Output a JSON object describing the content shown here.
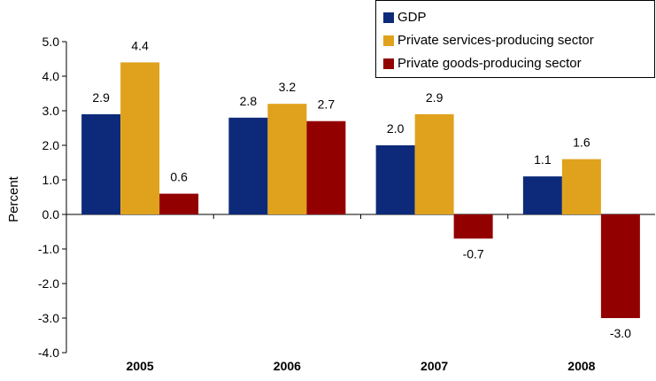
{
  "chart_data": {
    "type": "bar",
    "title": "",
    "xlabel": "",
    "ylabel": "Percent",
    "ylim": [
      -4.0,
      5.0
    ],
    "yticks": [
      "5.0",
      "4.0",
      "3.0",
      "2.0",
      "1.0",
      "0.0",
      "-1.0",
      "-2.0",
      "-3.0",
      "-4.0"
    ],
    "categories": [
      "2005",
      "2006",
      "2007",
      "2008"
    ],
    "legend_position": "top-right",
    "series": [
      {
        "name": "GDP",
        "color": "#0d2a7a",
        "values": [
          2.9,
          2.8,
          2.0,
          1.1
        ],
        "labels": [
          "2.9",
          "2.8",
          "2.0",
          "1.1"
        ]
      },
      {
        "name": "Private services-producing sector",
        "color": "#e0a21c",
        "values": [
          4.4,
          3.2,
          2.9,
          1.6
        ],
        "labels": [
          "4.4",
          "3.2",
          "2.9",
          "1.6"
        ]
      },
      {
        "name": "Private goods-producing sector",
        "color": "#930000",
        "values": [
          0.6,
          2.7,
          -0.7,
          -3.0
        ],
        "labels": [
          "0.6",
          "2.7",
          "-0.7",
          "-3.0"
        ]
      }
    ]
  }
}
